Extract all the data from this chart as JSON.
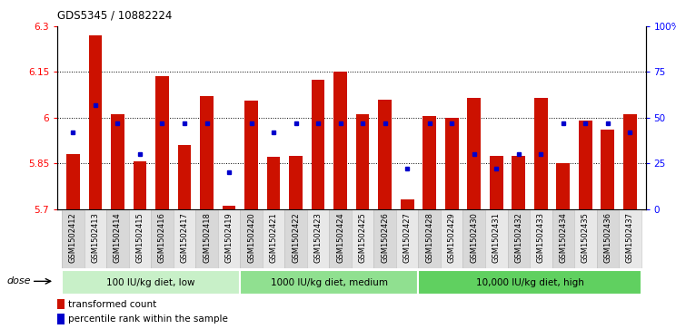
{
  "title": "GDS5345 / 10882224",
  "categories": [
    "GSM1502412",
    "GSM1502413",
    "GSM1502414",
    "GSM1502415",
    "GSM1502416",
    "GSM1502417",
    "GSM1502418",
    "GSM1502419",
    "GSM1502420",
    "GSM1502421",
    "GSM1502422",
    "GSM1502423",
    "GSM1502424",
    "GSM1502425",
    "GSM1502426",
    "GSM1502427",
    "GSM1502428",
    "GSM1502429",
    "GSM1502430",
    "GSM1502431",
    "GSM1502432",
    "GSM1502433",
    "GSM1502434",
    "GSM1502435",
    "GSM1502436",
    "GSM1502437"
  ],
  "red_values": [
    5.88,
    6.27,
    6.01,
    5.855,
    6.135,
    5.91,
    6.07,
    5.71,
    6.055,
    5.87,
    5.875,
    6.125,
    6.15,
    6.01,
    6.06,
    5.73,
    6.005,
    6.0,
    6.065,
    5.875,
    5.875,
    6.065,
    5.85,
    5.99,
    5.96,
    6.01
  ],
  "blue_values": [
    42,
    57,
    47,
    30,
    47,
    47,
    47,
    20,
    47,
    42,
    47,
    47,
    47,
    47,
    47,
    22,
    47,
    47,
    30,
    22,
    30,
    30,
    47,
    47,
    47,
    42
  ],
  "groups": [
    {
      "label": "100 IU/kg diet, low",
      "start": 0,
      "end": 8
    },
    {
      "label": "1000 IU/kg diet, medium",
      "start": 8,
      "end": 16
    },
    {
      "label": "10,000 IU/kg diet, high",
      "start": 16,
      "end": 26
    }
  ],
  "ylim_left": [
    5.7,
    6.3
  ],
  "ylim_right": [
    0,
    100
  ],
  "yticks_left": [
    5.7,
    5.85,
    6.0,
    6.15,
    6.3
  ],
  "yticks_right": [
    0,
    25,
    50,
    75,
    100
  ],
  "ytick_labels_left": [
    "5.7",
    "5.85",
    "6",
    "6.15",
    "6.3"
  ],
  "ytick_labels_right": [
    "0",
    "25",
    "50",
    "75",
    "100%"
  ],
  "hlines": [
    5.85,
    6.0,
    6.15
  ],
  "bar_color": "#cc1100",
  "dot_color": "#0000cc",
  "legend_items": [
    "transformed count",
    "percentile rank within the sample"
  ],
  "dose_label": "dose",
  "group_colors": [
    "#c8f0c8",
    "#90e090",
    "#60d060"
  ],
  "bg_xtick_even": "#d8d8d8",
  "bg_xtick_odd": "#e8e8e8"
}
